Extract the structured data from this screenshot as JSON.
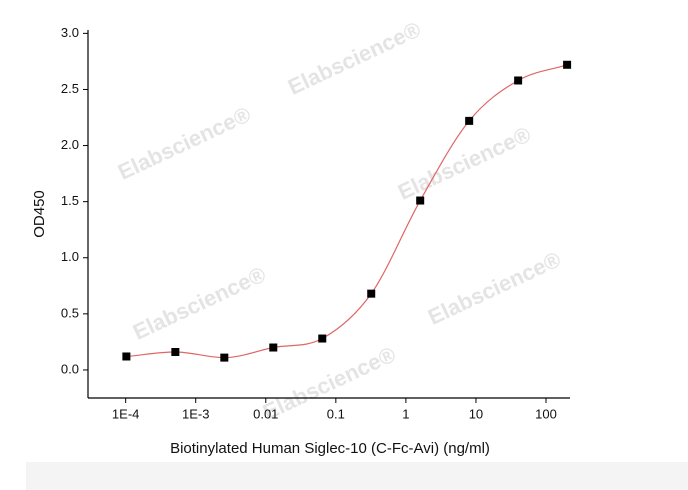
{
  "chart_data": {
    "type": "scatter",
    "xlabel": "Biotinylated Human Siglec-10 (C-Fc-Avi) (ng/ml)",
    "ylabel": "OD450",
    "watermark": "Elabscience®",
    "x": [
      0.0001024,
      0.000512,
      0.00256,
      0.0128,
      0.064,
      0.32,
      1.6,
      8,
      40,
      200
    ],
    "series": [
      {
        "color": "#000000",
        "line_color": "#e06666",
        "values": [
          0.12,
          0.16,
          0.11,
          0.2,
          0.28,
          0.68,
          1.51,
          2.22,
          2.58,
          2.72
        ]
      }
    ],
    "xscale": "log",
    "xlim": [
      2.9e-05,
      220
    ],
    "ylim": [
      -0.25,
      3.03
    ],
    "xticks": [
      {
        "value": 0.0001,
        "label": "1E-4"
      },
      {
        "value": 0.001,
        "label": "1E-3"
      },
      0.01,
      0.1,
      1,
      10,
      100
    ],
    "yticks": [
      {
        "value": 0,
        "label": "0.0"
      },
      0.5,
      {
        "value": 1,
        "label": "1.0"
      },
      1.5,
      {
        "value": 2,
        "label": "2.0"
      },
      2.5,
      {
        "value": 3,
        "label": "3.0"
      }
    ]
  }
}
